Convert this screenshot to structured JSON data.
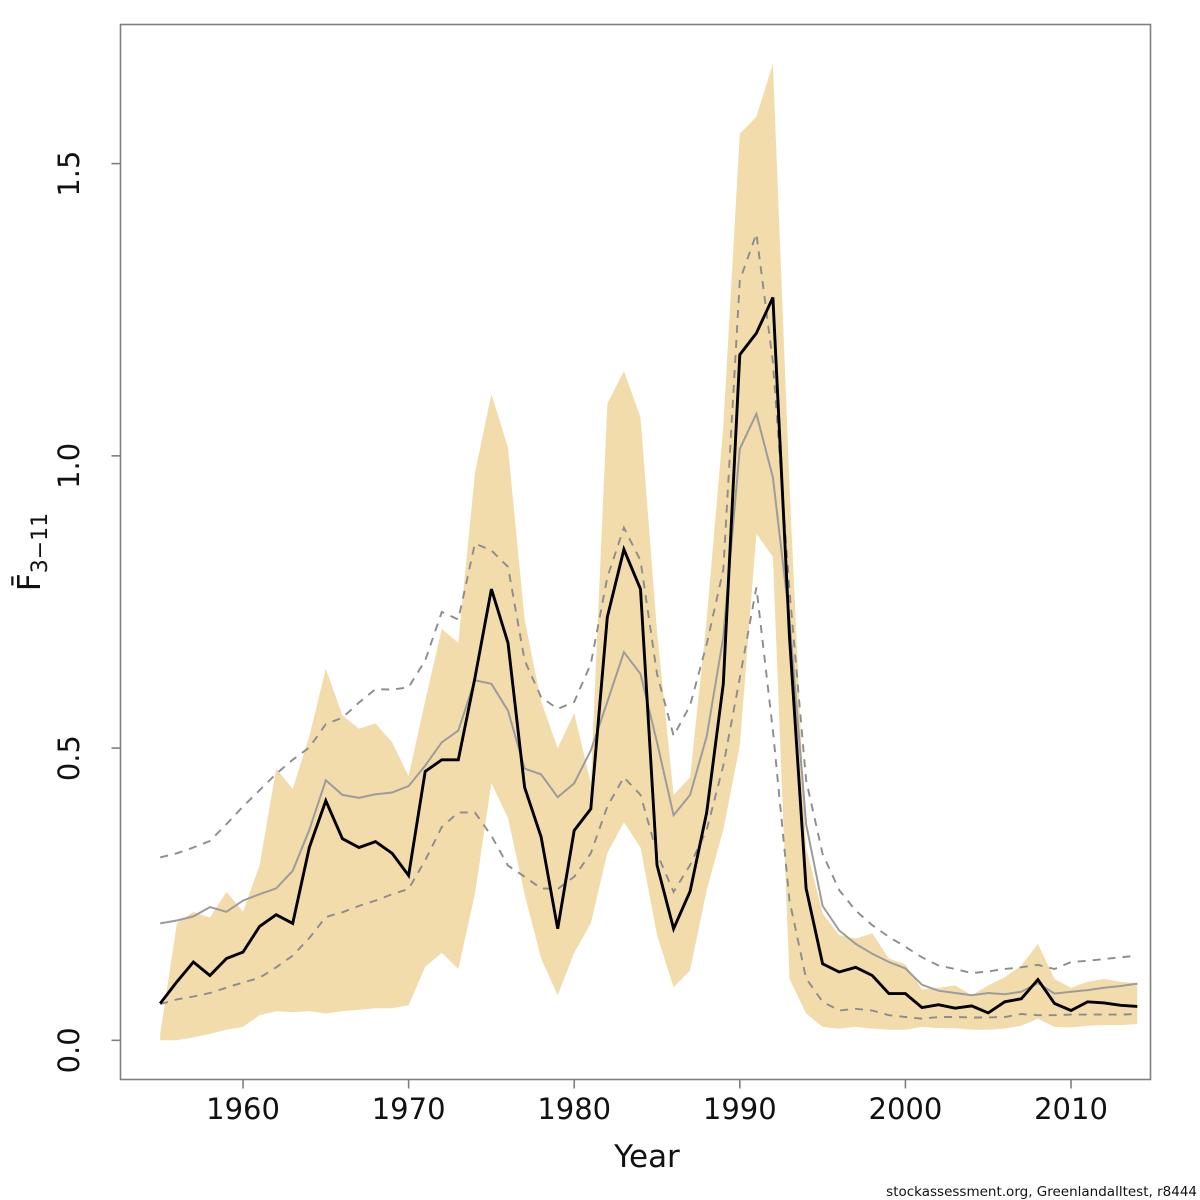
{
  "labels": {
    "xlabel": "Year",
    "ylabel_base": "F̄",
    "ylabel_sub": "3−11",
    "footer": "stockassessment.org, Greenlandalltest, r8444"
  },
  "colors": {
    "band": "#f3dcab",
    "black_line": "#000000",
    "gray_line": "#9c9c9c",
    "dashed_line": "#8c8c8c",
    "axis": "#7f7f7f",
    "text": "#111111"
  },
  "chart_data": {
    "type": "line",
    "title": "",
    "xlabel": "Year",
    "ylabel": "F̄(3-11)",
    "grid": false,
    "legend": null,
    "xlim": [
      1952.6,
      2014.8
    ],
    "ylim": [
      -0.067,
      1.738
    ],
    "x_ticks": [
      1960,
      1970,
      1980,
      1990,
      2000,
      2010
    ],
    "y_ticks": [
      "0.0",
      "0.5",
      "1.0",
      "1.5"
    ],
    "x": [
      1955,
      1956,
      1957,
      1958,
      1959,
      1960,
      1961,
      1962,
      1963,
      1964,
      1965,
      1966,
      1967,
      1968,
      1969,
      1970,
      1971,
      1972,
      1973,
      1974,
      1975,
      1976,
      1977,
      1978,
      1979,
      1980,
      1981,
      1982,
      1983,
      1984,
      1985,
      1986,
      1987,
      1988,
      1989,
      1990,
      1991,
      1992,
      1993,
      1994,
      1995,
      1996,
      1997,
      1998,
      1999,
      2000,
      2001,
      2002,
      2003,
      2004,
      2005,
      2006,
      2007,
      2008,
      2009,
      2010,
      2011,
      2012,
      2013,
      2014
    ],
    "band": {
      "name": "estimate-95pct-confidence-band",
      "lower": [
        0.0,
        0.0,
        0.005,
        0.011,
        0.018,
        0.023,
        0.043,
        0.05,
        0.048,
        0.05,
        0.046,
        0.05,
        0.052,
        0.055,
        0.055,
        0.06,
        0.126,
        0.15,
        0.122,
        0.25,
        0.44,
        0.38,
        0.25,
        0.14,
        0.077,
        0.15,
        0.2,
        0.32,
        0.373,
        0.33,
        0.18,
        0.091,
        0.12,
        0.257,
        0.36,
        0.504,
        0.867,
        0.827,
        0.105,
        0.046,
        0.023,
        0.02,
        0.023,
        0.02,
        0.018,
        0.018,
        0.023,
        0.021,
        0.021,
        0.018,
        0.018,
        0.02,
        0.025,
        0.037,
        0.023,
        0.022,
        0.025,
        0.026,
        0.026,
        0.028
      ],
      "upper": [
        0.01,
        0.2,
        0.22,
        0.21,
        0.254,
        0.22,
        0.3,
        0.465,
        0.43,
        0.52,
        0.636,
        0.556,
        0.533,
        0.542,
        0.51,
        0.452,
        0.581,
        0.704,
        0.68,
        0.97,
        1.106,
        1.014,
        0.72,
        0.58,
        0.5,
        0.56,
        0.44,
        1.089,
        1.145,
        1.066,
        0.7,
        0.42,
        0.45,
        0.72,
        1.05,
        1.551,
        1.58,
        1.671,
        0.95,
        0.33,
        0.217,
        0.18,
        0.174,
        0.183,
        0.14,
        0.13,
        0.087,
        0.09,
        0.094,
        0.077,
        0.094,
        0.108,
        0.128,
        0.165,
        0.105,
        0.09,
        0.1,
        0.105,
        0.1,
        0.098
      ]
    },
    "series": [
      {
        "name": "current-run-fbar-estimate",
        "style": "solid-black",
        "values": [
          0.063,
          0.1,
          0.134,
          0.111,
          0.14,
          0.151,
          0.195,
          0.215,
          0.2,
          0.33,
          0.41,
          0.345,
          0.33,
          0.34,
          0.32,
          0.282,
          0.46,
          0.48,
          0.48,
          0.62,
          0.772,
          0.68,
          0.433,
          0.348,
          0.191,
          0.359,
          0.396,
          0.724,
          0.84,
          0.772,
          0.3,
          0.191,
          0.255,
          0.39,
          0.61,
          1.173,
          1.21,
          1.271,
          0.69,
          0.26,
          0.131,
          0.117,
          0.125,
          0.111,
          0.08,
          0.08,
          0.056,
          0.061,
          0.055,
          0.059,
          0.047,
          0.066,
          0.071,
          0.104,
          0.063,
          0.051,
          0.066,
          0.064,
          0.06,
          0.058
        ]
      },
      {
        "name": "comparison-run-fbar-estimate",
        "style": "solid-gray",
        "values": [
          0.2,
          0.205,
          0.212,
          0.228,
          0.22,
          0.239,
          0.25,
          0.26,
          0.29,
          0.36,
          0.445,
          0.42,
          0.415,
          0.421,
          0.424,
          0.435,
          0.47,
          0.51,
          0.53,
          0.616,
          0.61,
          0.564,
          0.465,
          0.455,
          0.416,
          0.44,
          0.496,
          0.579,
          0.664,
          0.627,
          0.51,
          0.385,
          0.42,
          0.52,
          0.69,
          1.012,
          1.072,
          0.963,
          0.72,
          0.37,
          0.23,
          0.188,
          0.165,
          0.148,
          0.134,
          0.123,
          0.095,
          0.085,
          0.081,
          0.077,
          0.081,
          0.079,
          0.083,
          0.098,
          0.08,
          0.083,
          0.086,
          0.09,
          0.093,
          0.097
        ]
      },
      {
        "name": "comparison-run-ci-upper",
        "style": "dashed-gray",
        "values": [
          0.313,
          0.32,
          0.33,
          0.341,
          0.37,
          0.4,
          0.428,
          0.456,
          0.48,
          0.501,
          0.541,
          0.552,
          0.578,
          0.601,
          0.6,
          0.604,
          0.65,
          0.733,
          0.72,
          0.85,
          0.838,
          0.81,
          0.65,
          0.587,
          0.567,
          0.579,
          0.644,
          0.792,
          0.877,
          0.821,
          0.627,
          0.521,
          0.573,
          0.678,
          0.805,
          1.3,
          1.38,
          1.16,
          0.77,
          0.445,
          0.319,
          0.257,
          0.222,
          0.197,
          0.177,
          0.16,
          0.142,
          0.128,
          0.122,
          0.115,
          0.118,
          0.122,
          0.125,
          0.129,
          0.122,
          0.134,
          0.136,
          0.139,
          0.142,
          0.145
        ]
      },
      {
        "name": "comparison-run-ci-lower",
        "style": "dashed-gray",
        "values": [
          0.062,
          0.07,
          0.075,
          0.081,
          0.09,
          0.099,
          0.107,
          0.125,
          0.145,
          0.175,
          0.211,
          0.219,
          0.23,
          0.239,
          0.25,
          0.259,
          0.308,
          0.365,
          0.39,
          0.39,
          0.35,
          0.299,
          0.28,
          0.26,
          0.259,
          0.28,
          0.32,
          0.4,
          0.45,
          0.42,
          0.32,
          0.254,
          0.3,
          0.36,
          0.47,
          0.62,
          0.775,
          0.53,
          0.239,
          0.106,
          0.066,
          0.051,
          0.054,
          0.051,
          0.043,
          0.04,
          0.037,
          0.04,
          0.04,
          0.039,
          0.039,
          0.04,
          0.045,
          0.043,
          0.043,
          0.044,
          0.044,
          0.044,
          0.044,
          0.045
        ]
      }
    ]
  }
}
